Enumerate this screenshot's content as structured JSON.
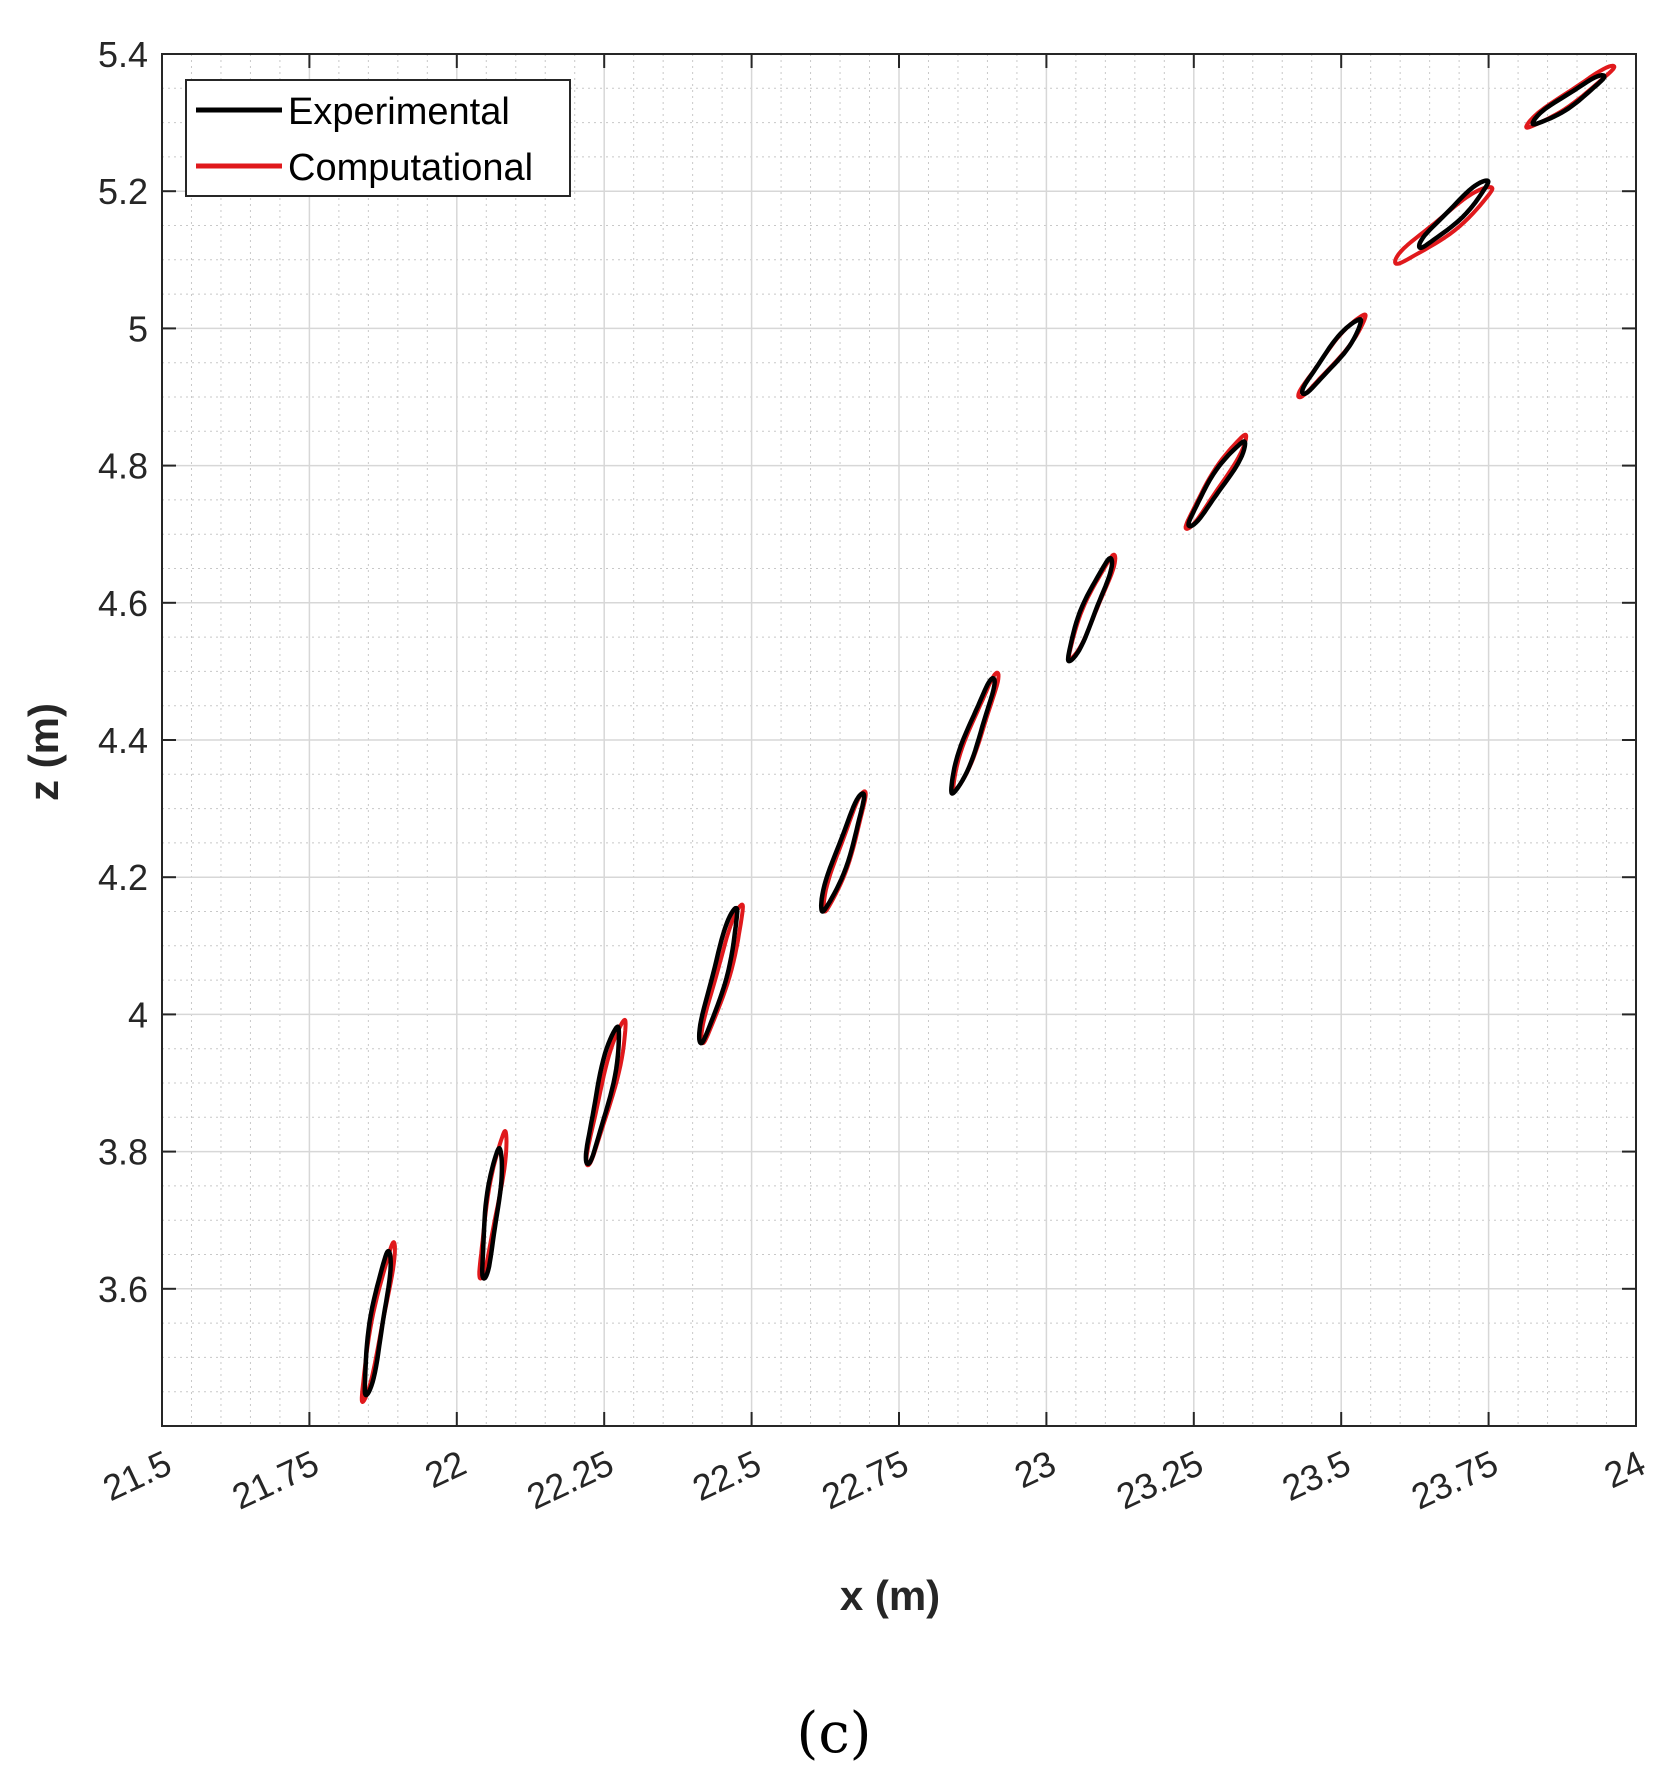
{
  "chart_data": {
    "type": "line",
    "title": "",
    "xlabel": "x (m)",
    "ylabel": "z (m)",
    "xlim": [
      21.5,
      24
    ],
    "ylim": [
      3.4,
      5.4
    ],
    "x_ticks": [
      21.5,
      21.75,
      22,
      22.25,
      22.5,
      22.75,
      23,
      23.25,
      23.5,
      23.75,
      24
    ],
    "x_tick_labels": [
      "21.5",
      "21.75",
      "22",
      "22.25",
      "22.5",
      "22.75",
      "23",
      "23.25",
      "23.5",
      "23.75",
      "24"
    ],
    "y_ticks": [
      3.6,
      3.8,
      4,
      4.2,
      4.4,
      4.6,
      4.8,
      5,
      5.2,
      5.4
    ],
    "y_tick_labels": [
      "3.6",
      "3.8",
      "4",
      "4.2",
      "4.4",
      "4.6",
      "4.8",
      "5",
      "5.2",
      "5.4"
    ],
    "grid": true,
    "minor_grid": true,
    "legend_position": "top-left",
    "series": [
      {
        "name": "Experimental",
        "color": "#000000",
        "loops": [
          {
            "p1": [
              21.846,
              3.445
            ],
            "p2": [
              21.884,
              3.655
            ],
            "width": 0.013
          },
          {
            "p1": [
              22.046,
              3.615
            ],
            "p2": [
              22.072,
              3.805
            ],
            "width": 0.012
          },
          {
            "p1": [
              22.222,
              3.782
            ],
            "p2": [
              22.273,
              3.982
            ],
            "width": 0.014
          },
          {
            "p1": [
              22.414,
              3.958
            ],
            "p2": [
              22.474,
              4.155
            ],
            "width": 0.014
          },
          {
            "p1": [
              22.62,
              4.15
            ],
            "p2": [
              22.689,
              4.322
            ],
            "width": 0.014
          },
          {
            "p1": [
              22.84,
              4.322
            ],
            "p2": [
              22.91,
              4.49
            ],
            "width": 0.014
          },
          {
            "p1": [
              23.038,
              4.515
            ],
            "p2": [
              23.109,
              4.665
            ],
            "width": 0.014
          },
          {
            "p1": [
              23.242,
              4.712
            ],
            "p2": [
              23.336,
              4.835
            ],
            "width": 0.014
          },
          {
            "p1": [
              23.435,
              4.905
            ],
            "p2": [
              23.533,
              5.013
            ],
            "width": 0.014
          },
          {
            "p1": [
              23.633,
              5.118
            ],
            "p2": [
              23.749,
              5.215
            ],
            "width": 0.014
          },
          {
            "p1": [
              23.825,
              5.298
            ],
            "p2": [
              23.946,
              5.368
            ],
            "width": 0.012
          }
        ]
      },
      {
        "name": "Computational",
        "color": "#e0191c",
        "loops": [
          {
            "p1": [
              21.84,
              3.435
            ],
            "p2": [
              21.893,
              3.668
            ],
            "width": 0.011
          },
          {
            "p1": [
              22.04,
              3.615
            ],
            "p2": [
              22.082,
              3.83
            ],
            "width": 0.011
          },
          {
            "p1": [
              22.222,
              3.78
            ],
            "p2": [
              22.285,
              3.992
            ],
            "width": 0.013
          },
          {
            "p1": [
              22.417,
              3.958
            ],
            "p2": [
              22.484,
              4.16
            ],
            "width": 0.013
          },
          {
            "p1": [
              22.624,
              4.15
            ],
            "p2": [
              22.692,
              4.325
            ],
            "width": 0.013
          },
          {
            "p1": [
              22.843,
              4.325
            ],
            "p2": [
              22.917,
              4.498
            ],
            "width": 0.013
          },
          {
            "p1": [
              23.039,
              4.518
            ],
            "p2": [
              23.115,
              4.67
            ],
            "width": 0.013
          },
          {
            "p1": [
              23.237,
              4.708
            ],
            "p2": [
              23.338,
              4.845
            ],
            "width": 0.013
          },
          {
            "p1": [
              23.428,
              4.9
            ],
            "p2": [
              23.541,
              5.02
            ],
            "width": 0.013
          },
          {
            "p1": [
              23.592,
              5.095
            ],
            "p2": [
              23.756,
              5.205
            ],
            "width": 0.018
          },
          {
            "p1": [
              23.814,
              5.293
            ],
            "p2": [
              23.963,
              5.382
            ],
            "width": 0.012
          }
        ]
      }
    ]
  },
  "caption": "(c)"
}
